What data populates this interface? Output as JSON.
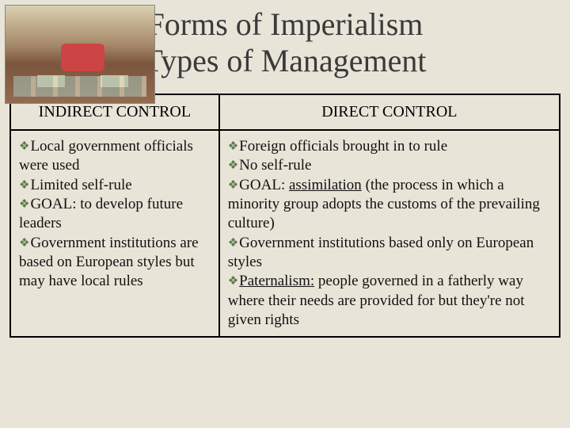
{
  "title": {
    "line1": "Forms of Imperialism",
    "line2": "Types of Management"
  },
  "table": {
    "headers": {
      "left": "INDIRECT CONTROL",
      "right": "DIRECT CONTROL"
    },
    "left_items": [
      {
        "text": "Local government officials were used"
      },
      {
        "text": "Limited self-rule"
      },
      {
        "text": "GOAL: to develop future leaders"
      },
      {
        "text": "Government institutions are based on European styles but may have local rules"
      }
    ],
    "right_items": [
      {
        "prefix": "",
        "text": "Foreign officials brought in to rule"
      },
      {
        "prefix": "",
        "text": "No self-rule"
      },
      {
        "prefix": "GOAL: ",
        "underlined": "assimilation",
        "text": " (the process in which a minority group adopts the customs of the prevailing culture)"
      },
      {
        "prefix": "",
        "text": "Government institutions based only on European styles"
      },
      {
        "prefix": "",
        "underlined": "Paternalism:",
        "text": " people governed in a fatherly way where their needs are provided for but they're not given rights"
      }
    ]
  },
  "bullet_glyph": "❖",
  "colors": {
    "background": "#e8e4d8",
    "bullet": "#5a7a4a",
    "border": "#000000",
    "text": "#111111"
  }
}
